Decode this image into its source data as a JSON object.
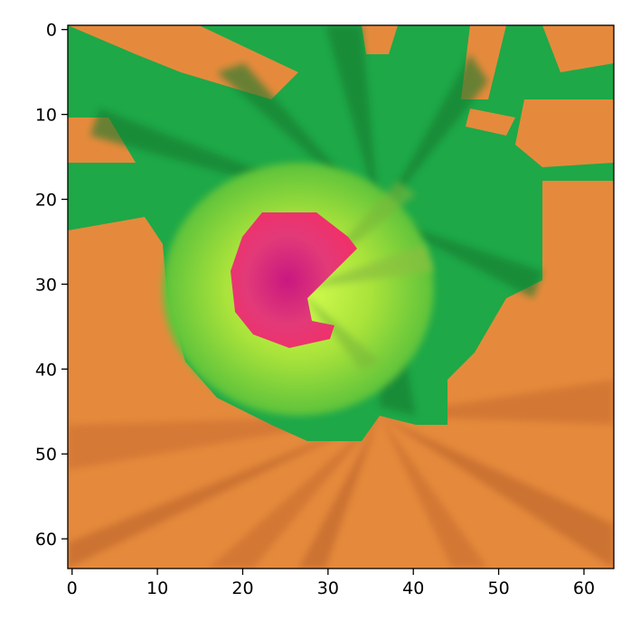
{
  "chart_data": {
    "type": "heatmap",
    "title": "",
    "xlabel": "",
    "ylabel": "",
    "grid": false,
    "xlim": [
      -0.5,
      63.5
    ],
    "ylim": [
      63.5,
      -0.5
    ],
    "x_ticks": [
      0,
      10,
      20,
      30,
      40,
      50,
      60
    ],
    "y_ticks": [
      0,
      10,
      20,
      30,
      40,
      50,
      60
    ],
    "x_tick_labels": [
      "0",
      "10",
      "20",
      "30",
      "40",
      "50",
      "60"
    ],
    "y_tick_labels": [
      "0",
      "10",
      "20",
      "30",
      "40",
      "50",
      "60"
    ],
    "image_size": [
      64,
      64
    ],
    "regions": [
      {
        "name": "orange background",
        "color": "#e58a3c"
      },
      {
        "name": "green petals",
        "color": "#22a844"
      },
      {
        "name": "yellow-green halo",
        "color": "#c9f040"
      },
      {
        "name": "magenta center",
        "color": "#e0306a"
      }
    ]
  }
}
